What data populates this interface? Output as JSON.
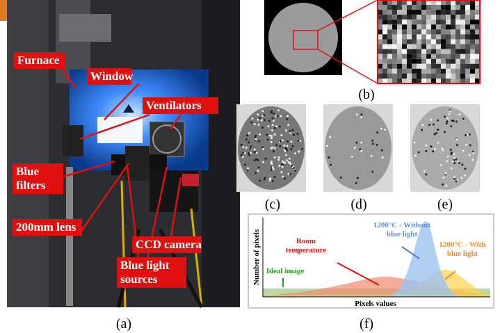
{
  "panel_a": {
    "caption": "(a)",
    "labels": [
      {
        "lines": [
          "Furnace"
        ]
      },
      {
        "lines": [
          "Window"
        ]
      },
      {
        "lines": [
          "Ventilators"
        ]
      },
      {
        "lines": [
          "Blue",
          "filters"
        ]
      },
      {
        "lines": [
          "200mm lens"
        ]
      },
      {
        "lines": [
          "CCD camera"
        ]
      },
      {
        "lines": [
          "Blue light",
          "sources"
        ]
      }
    ]
  },
  "panel_b": {
    "caption": "(b)"
  },
  "panel_c": {
    "caption": "(c)"
  },
  "panel_d": {
    "caption": "(d)"
  },
  "panel_e": {
    "caption": "(e)"
  },
  "panel_f": {
    "caption": "(f)",
    "y_label": "Number of pixels",
    "x_label": "Pixels values",
    "annotations": [
      {
        "lines": [
          "Room",
          "temperature"
        ]
      },
      {
        "lines": [
          "1200°C - Without",
          "blue light"
        ]
      },
      {
        "lines": [
          "1200°C - With",
          "blue light"
        ]
      },
      {
        "lines": [
          "Ideal image"
        ]
      }
    ]
  }
}
